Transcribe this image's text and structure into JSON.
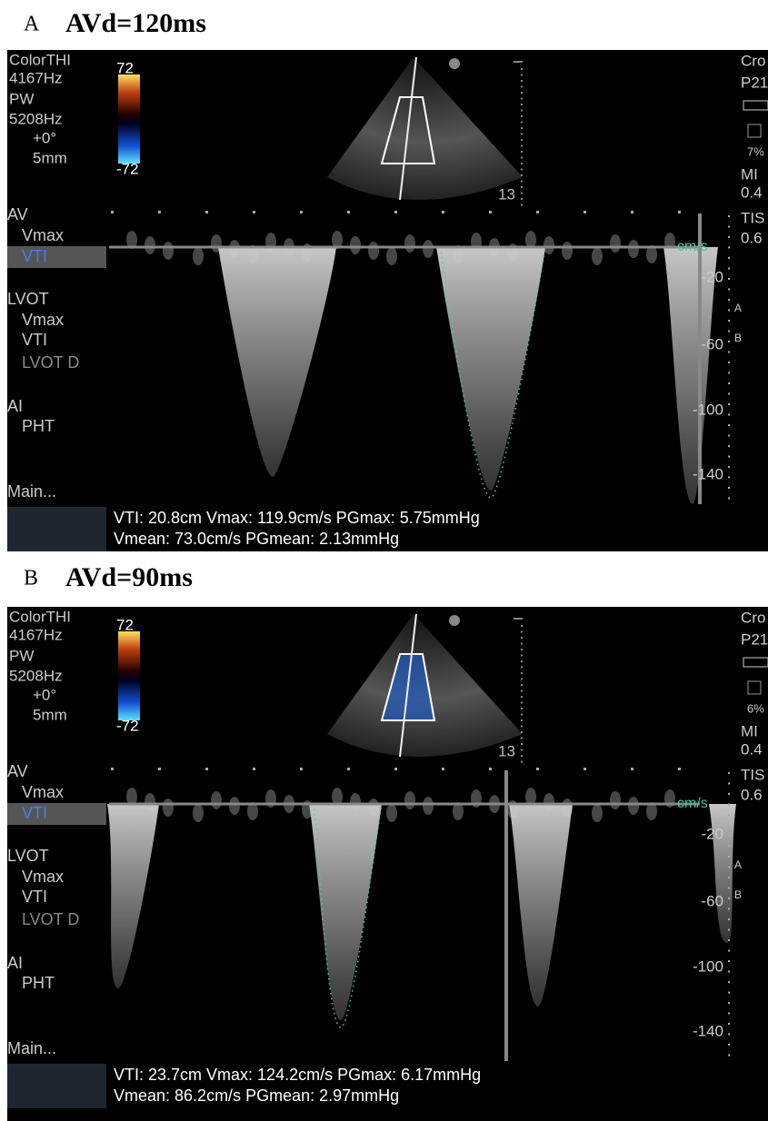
{
  "panels": [
    {
      "label": "A",
      "title": "AVd=120ms",
      "settings": [
        "ColorTHI",
        "4167Hz",
        "PW",
        "5208Hz",
        "+0°",
        "5mm"
      ],
      "color_scale": [
        "72",
        "-72"
      ],
      "depth": "13",
      "side_info": [
        "Cro",
        "P21",
        "7%",
        "MI",
        "0.4",
        "TIS",
        "0.6"
      ],
      "side_markers": [
        "A",
        "B"
      ],
      "menu": [
        "AV",
        "Vmax",
        "VTI",
        "LVOT",
        "Vmax",
        "VTI",
        "LVOT D",
        "AI",
        "PHT",
        "Main..."
      ],
      "velocity_unit": "cm/s",
      "velocity_scale": [
        "-20",
        "-60",
        "-100",
        "-140"
      ],
      "measurements": [
        "VTI: 20.8cm Vmax: 119.9cm/s PGmax: 5.75mmHg",
        "Vmean: 73.0cm/s PGmean: 2.13mmHg"
      ]
    },
    {
      "label": "B",
      "title": "AVd=90ms",
      "settings": [
        "ColorTHI",
        "4167Hz",
        "PW",
        "5208Hz",
        "+0°",
        "5mm"
      ],
      "color_scale": [
        "72",
        "-72"
      ],
      "depth": "13",
      "side_info": [
        "Cro",
        "P21",
        "6%",
        "MI",
        "0.4",
        "TIS",
        "0.6"
      ],
      "side_markers": [
        "A",
        "B"
      ],
      "menu": [
        "AV",
        "Vmax",
        "VTI",
        "LVOT",
        "Vmax",
        "VTI",
        "LVOT D",
        "AI",
        "PHT",
        "Main..."
      ],
      "velocity_unit": "cm/s",
      "velocity_scale": [
        "-20",
        "-60",
        "-100",
        "-140"
      ],
      "measurements": [
        "VTI: 23.7cm Vmax: 124.2cm/s PGmax: 6.17mmHg",
        "Vmean: 86.2cm/s PGmean: 2.97mmHg"
      ]
    }
  ]
}
